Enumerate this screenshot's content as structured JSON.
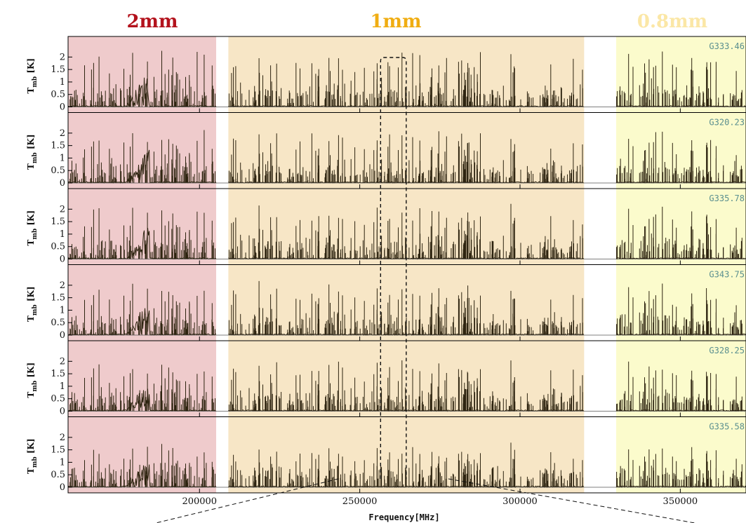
{
  "chart_data": {
    "type": "line",
    "xlabel": "Frequency[MHz]",
    "x_ticks": [
      200000,
      250000,
      300000,
      350000
    ],
    "xlim": [
      159000,
      370500
    ],
    "ylabel": "T",
    "ylabel_subscript": "mb",
    "ylabel_unit": " [K]",
    "y_ticks": [
      0,
      0.5,
      1,
      1.5,
      2
    ],
    "y_tick_labels": [
      "0",
      "0.5",
      "1",
      "1.5",
      "2"
    ],
    "ylim": [
      0,
      2.6
    ],
    "bands": [
      {
        "label": "2mm",
        "range": [
          159000,
          205200
        ],
        "fill": "#efcbcc",
        "title_color": "#b3121c"
      },
      {
        "label": "1mm",
        "range": [
          209000,
          320000
        ],
        "fill": "#f7e6c6",
        "title_color": "#f0ad12"
      },
      {
        "label": "0.8mm",
        "range": [
          330000,
          370500
        ],
        "fill": "#fbfbcc",
        "title_color": "#fbe7a6"
      }
    ],
    "zoom_window": {
      "range": [
        256500,
        264500
      ]
    },
    "series": [
      {
        "name": "G333.46",
        "band_ratio": 1.0
      },
      {
        "name": "G320.23",
        "band_ratio": 0.95
      },
      {
        "name": "G335.78",
        "band_ratio": 0.95
      },
      {
        "name": "G343.75",
        "band_ratio": 0.95
      },
      {
        "name": "G328.25",
        "band_ratio": 0.9
      },
      {
        "name": "G335.58",
        "band_ratio": 0.75
      }
    ],
    "colors": {
      "line": "#2e2410",
      "label": "#5a8f8f",
      "axis": "#000000"
    }
  }
}
